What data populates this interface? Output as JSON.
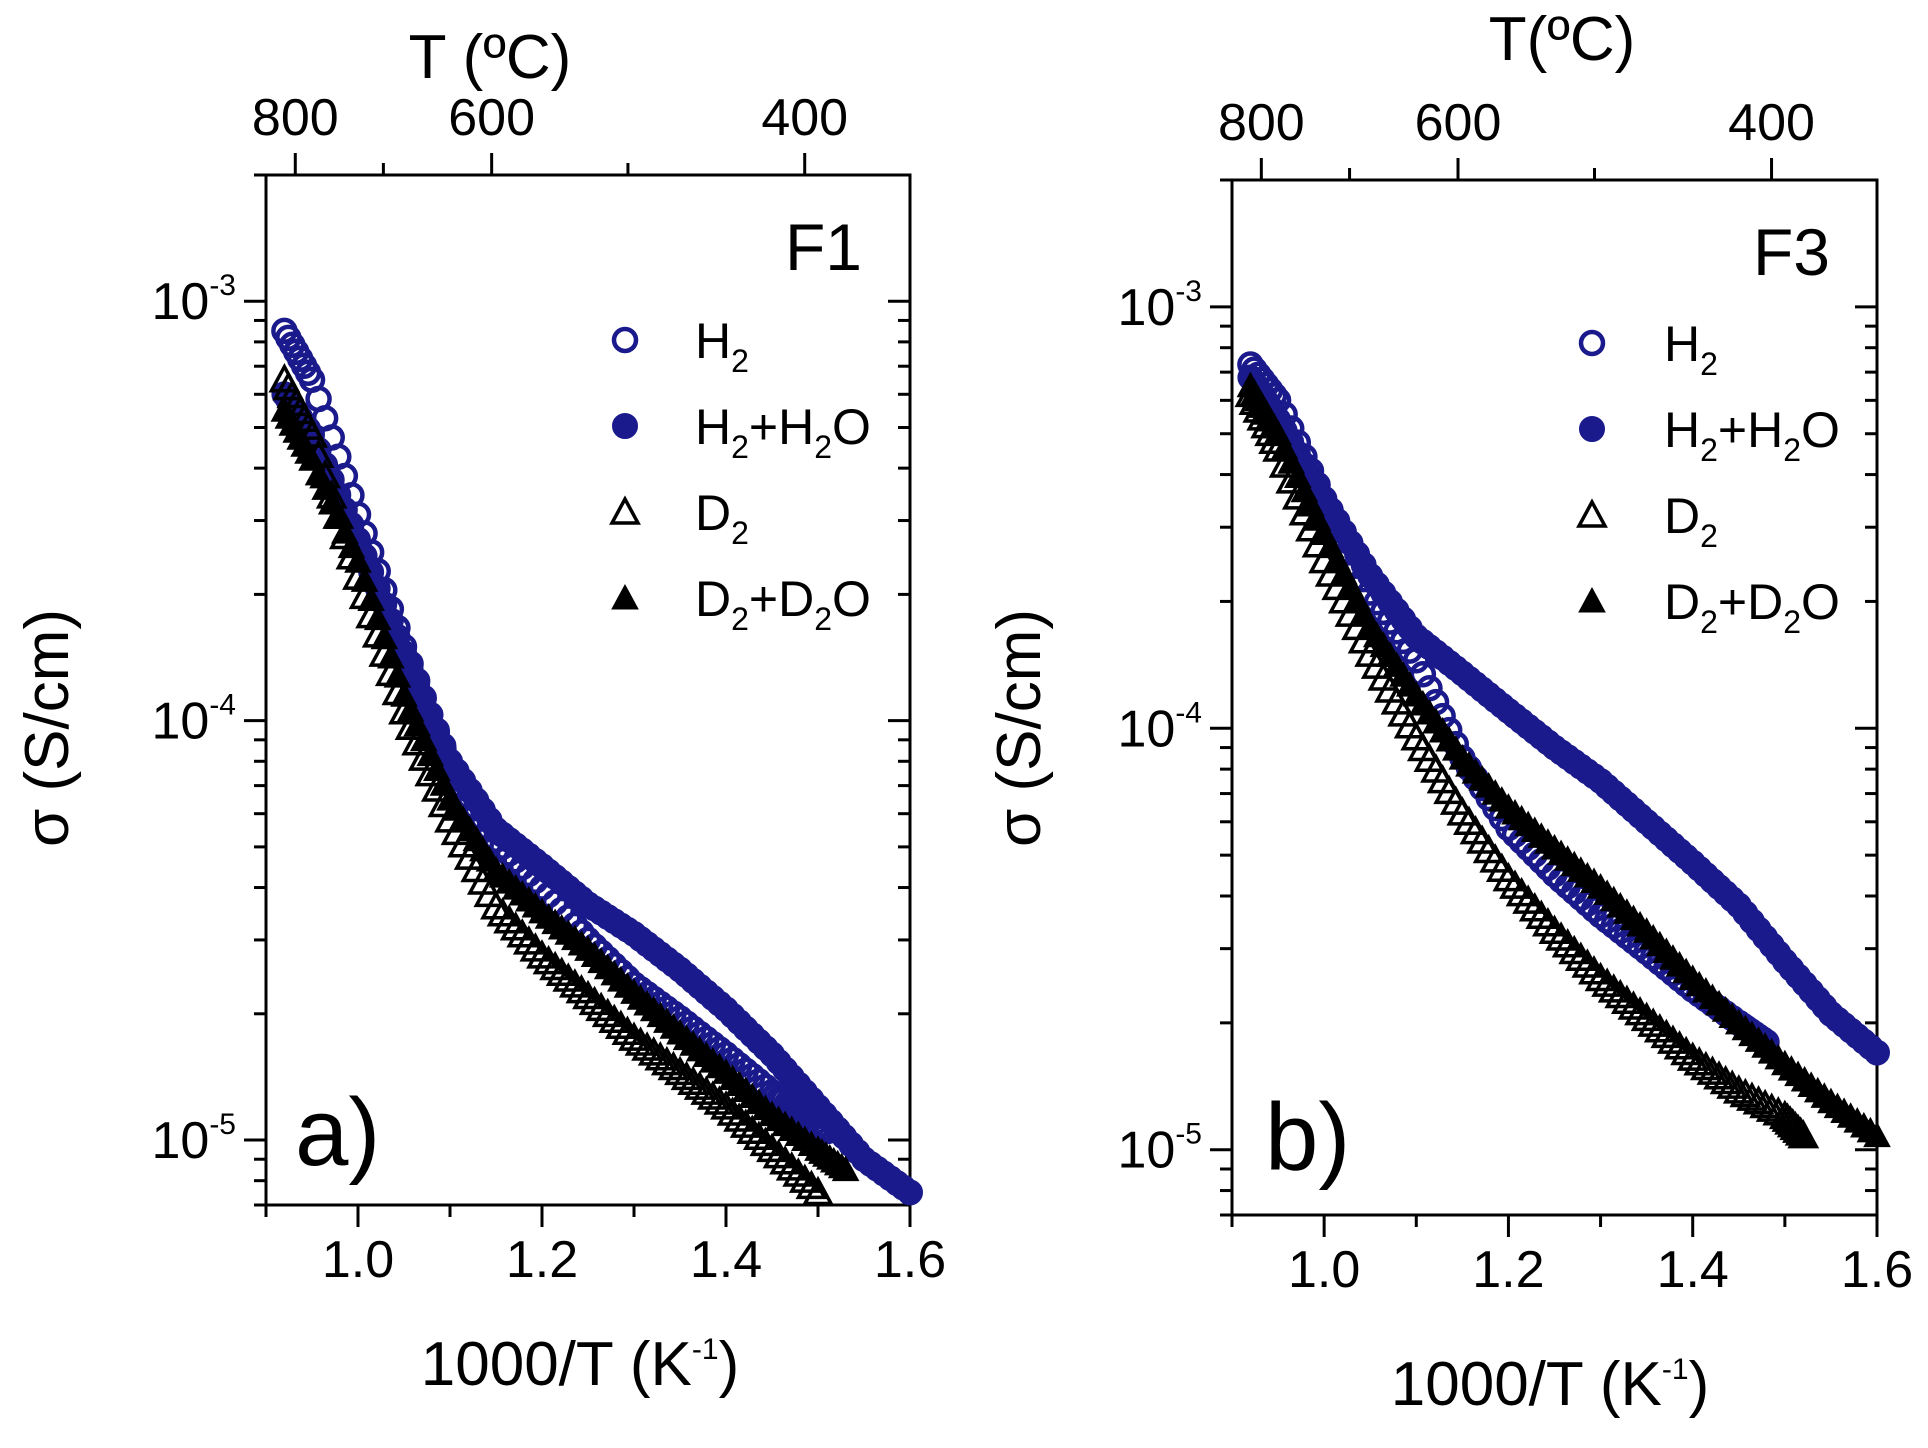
{
  "figure": {
    "colors": {
      "H2": "#1a1a8c",
      "D2": "#000000"
    },
    "chart_data": [
      {
        "type": "scatter",
        "panel_letter": "a)",
        "panel_title": "F1",
        "xlabel": "1000/T (K",
        "xlabel_sup": "-1",
        "xlabel_close": ")",
        "top_xlabel": "T (ºC)",
        "ylabel": "σ (S/cm)",
        "xlim": [
          0.9,
          1.6
        ],
        "ylim": [
          7e-06,
          0.002
        ],
        "yscale": "log",
        "x_ticks": [
          1.0,
          1.2,
          1.4,
          1.6
        ],
        "x_tick_labels": [
          "1.0",
          "1.2",
          "1.4",
          "1.6"
        ],
        "top_ticks_C": [
          800,
          600,
          400
        ],
        "top_tick_labels": [
          "800",
          "600",
          "400"
        ],
        "y_ticks": [
          {
            "base": "10",
            "exp": "-3"
          },
          {
            "base": "10",
            "exp": "-4"
          },
          {
            "base": "10",
            "exp": "-5"
          }
        ],
        "legend": [
          {
            "main": "H",
            "sub": "2",
            "rest": "",
            "rest_sub": "",
            "tail": "",
            "marker": "circle-open"
          },
          {
            "main": "H",
            "sub": "2",
            "rest": "+H",
            "rest_sub": "2",
            "tail": "O",
            "marker": "circle-filled"
          },
          {
            "main": "D",
            "sub": "2",
            "rest": "",
            "rest_sub": "",
            "tail": "",
            "marker": "triangle-open"
          },
          {
            "main": "D",
            "sub": "2",
            "rest": "+D",
            "rest_sub": "2",
            "tail": "O",
            "marker": "triangle-filled"
          }
        ],
        "series": [
          {
            "name": "H2",
            "marker": "circle-open",
            "x": [
              0.92,
              0.95,
              1.0,
              1.05,
              1.1,
              1.15,
              1.2,
              1.25,
              1.3,
              1.35,
              1.4,
              1.45,
              1.48,
              1.51
            ],
            "y": [
              0.00085,
              0.00065,
              0.00031,
              0.00015,
              7.8e-05,
              5.2e-05,
              4e-05,
              3e-05,
              2.35e-05,
              1.95e-05,
              1.6e-05,
              1.3e-05,
              1.18e-05,
              1.05e-05
            ]
          },
          {
            "name": "H2+H2O",
            "marker": "circle-filled",
            "x": [
              0.92,
              0.95,
              1.0,
              1.05,
              1.1,
              1.15,
              1.2,
              1.25,
              1.3,
              1.35,
              1.4,
              1.45,
              1.5,
              1.55,
              1.6
            ],
            "y": [
              0.0006,
              0.00048,
              0.00027,
              0.000145,
              8e-05,
              5.5e-05,
              4.5e-05,
              3.65e-05,
              3.1e-05,
              2.55e-05,
              2.05e-05,
              1.6e-05,
              1.2e-05,
              9e-06,
              7.5e-06
            ]
          },
          {
            "name": "D2",
            "marker": "triangle-open",
            "x": [
              0.92,
              0.95,
              1.0,
              1.05,
              1.1,
              1.15,
              1.2,
              1.25,
              1.3,
              1.35,
              1.4,
              1.45,
              1.5
            ],
            "y": [
              0.00065,
              0.00048,
              0.00022,
              0.000105,
              5.8e-05,
              3.6e-05,
              2.75e-05,
              2.2e-05,
              1.75e-05,
              1.45e-05,
              1.2e-05,
              9.5e-06,
              7.5e-06
            ]
          },
          {
            "name": "D2+D2O",
            "marker": "triangle-filled",
            "x": [
              0.92,
              0.95,
              1.0,
              1.05,
              1.1,
              1.15,
              1.2,
              1.25,
              1.3,
              1.35,
              1.4,
              1.45,
              1.5,
              1.53
            ],
            "y": [
              0.00055,
              0.00042,
              0.00024,
              0.000115,
              6.5e-05,
              4.4e-05,
              3.5e-05,
              2.85e-05,
              2.25e-05,
              1.8e-05,
              1.45e-05,
              1.15e-05,
              9.5e-06,
              8.5e-06
            ]
          }
        ]
      },
      {
        "type": "scatter",
        "panel_letter": "b)",
        "panel_title": "F3",
        "xlabel": "1000/T (K",
        "xlabel_sup": "-1",
        "xlabel_close": ")",
        "top_xlabel": "T(ºC)",
        "ylabel": "σ (S/cm)",
        "xlim": [
          0.9,
          1.6
        ],
        "ylim": [
          7e-06,
          0.002
        ],
        "yscale": "log",
        "x_ticks": [
          1.0,
          1.2,
          1.4,
          1.6
        ],
        "x_tick_labels": [
          "1.0",
          "1.2",
          "1.4",
          "1.6"
        ],
        "top_ticks_C": [
          800,
          600,
          400
        ],
        "top_tick_labels": [
          "800",
          "600",
          "400"
        ],
        "y_ticks": [
          {
            "base": "10",
            "exp": "-3"
          },
          {
            "base": "10",
            "exp": "-4"
          },
          {
            "base": "10",
            "exp": "-5"
          }
        ],
        "legend": [
          {
            "main": "H",
            "sub": "2",
            "rest": "",
            "rest_sub": "",
            "tail": "",
            "marker": "circle-open"
          },
          {
            "main": "H",
            "sub": "2",
            "rest": "+H",
            "rest_sub": "2",
            "tail": "O",
            "marker": "circle-filled"
          },
          {
            "main": "D",
            "sub": "2",
            "rest": "",
            "rest_sub": "",
            "tail": "",
            "marker": "triangle-open"
          },
          {
            "main": "D",
            "sub": "2",
            "rest": "+D",
            "rest_sub": "2",
            "tail": "O",
            "marker": "triangle-filled"
          }
        ],
        "series": [
          {
            "name": "H2",
            "marker": "circle-open",
            "x": [
              0.92,
              0.95,
              1.0,
              1.05,
              1.1,
              1.15,
              1.2,
              1.25,
              1.3,
              1.35,
              1.4,
              1.45,
              1.48
            ],
            "y": [
              0.00073,
              0.0006,
              0.00035,
              0.00021,
              0.000145,
              8.5e-05,
              5.8e-05,
              4.5e-05,
              3.6e-05,
              2.95e-05,
              2.4e-05,
              2e-05,
              1.8e-05
            ]
          },
          {
            "name": "H2+H2O",
            "marker": "circle-filled",
            "x": [
              0.92,
              0.95,
              1.0,
              1.05,
              1.1,
              1.15,
              1.2,
              1.25,
              1.3,
              1.35,
              1.4,
              1.45,
              1.5,
              1.55,
              1.6
            ],
            "y": [
              0.00068,
              0.00054,
              0.00035,
              0.00023,
              0.000165,
              0.000135,
              0.00011,
              9e-05,
              7.5e-05,
              6e-05,
              4.8e-05,
              3.8e-05,
              2.8e-05,
              2.1e-05,
              1.7e-05
            ]
          },
          {
            "name": "D2",
            "marker": "triangle-open",
            "x": [
              0.92,
              0.95,
              1.0,
              1.05,
              1.1,
              1.15,
              1.2,
              1.25,
              1.3,
              1.35,
              1.4,
              1.45,
              1.5,
              1.52
            ],
            "y": [
              0.00062,
              0.00046,
              0.00025,
              0.00015,
              9.5e-05,
              6.3e-05,
              4.4e-05,
              3.3e-05,
              2.55e-05,
              2.05e-05,
              1.65e-05,
              1.38e-05,
              1.2e-05,
              1.08e-05
            ]
          },
          {
            "name": "D2+D2O",
            "marker": "triangle-filled",
            "x": [
              0.92,
              0.95,
              1.0,
              1.05,
              1.1,
              1.15,
              1.2,
              1.25,
              1.3,
              1.35,
              1.4,
              1.45,
              1.5,
              1.55,
              1.6
            ],
            "y": [
              0.00065,
              0.0005,
              0.00029,
              0.000175,
              0.00012,
              8.5e-05,
              6.5e-05,
              5.2e-05,
              4.2e-05,
              3.3e-05,
              2.55e-05,
              2e-05,
              1.6e-05,
              1.3e-05,
              1.08e-05
            ]
          }
        ]
      }
    ]
  }
}
